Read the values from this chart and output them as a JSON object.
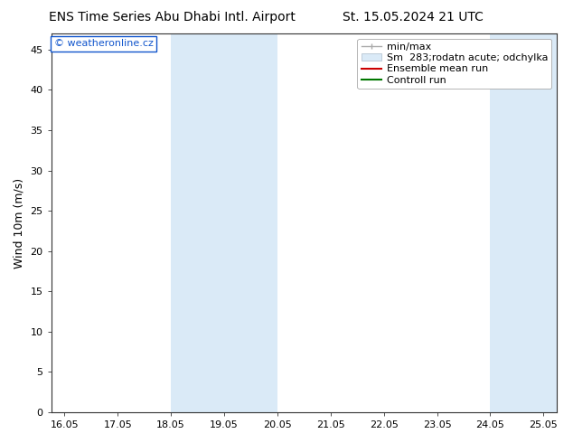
{
  "title_left": "ENS Time Series Abu Dhabi Intl. Airport",
  "title_right": "St. 15.05.2024 21 UTC",
  "ylabel": "Wind 10m (m/s)",
  "xlim_min": 15.8,
  "xlim_max": 25.3,
  "ylim_min": 0,
  "ylim_max": 47,
  "xtick_positions": [
    16.05,
    17.05,
    18.05,
    19.05,
    20.05,
    21.05,
    22.05,
    23.05,
    24.05,
    25.05
  ],
  "xtick_labels": [
    "16.05",
    "17.05",
    "18.05",
    "19.05",
    "20.05",
    "21.05",
    "22.05",
    "23.05",
    "24.05",
    "25.05"
  ],
  "ytick_positions": [
    0,
    5,
    10,
    15,
    20,
    25,
    30,
    35,
    40,
    45
  ],
  "ytick_labels": [
    "0",
    "5",
    "10",
    "15",
    "20",
    "25",
    "30",
    "35",
    "40",
    "45"
  ],
  "shaded_bands": [
    {
      "x_start": 18.05,
      "x_end": 20.05,
      "color": "#daeaf7"
    },
    {
      "x_start": 24.05,
      "x_end": 25.3,
      "color": "#daeaf7"
    }
  ],
  "background_color": "#ffffff",
  "plot_bg_color": "#ffffff",
  "watermark_text": "© weatheronline.cz",
  "watermark_color": "#1155cc",
  "legend_min_max_color": "#aaaaaa",
  "legend_band_color": "#daeaf7",
  "legend_mean_color": "#cc0000",
  "legend_control_color": "#007700",
  "font_size_title": 10,
  "font_size_axis": 9,
  "font_size_tick": 8,
  "font_size_legend": 8,
  "font_size_watermark": 8
}
